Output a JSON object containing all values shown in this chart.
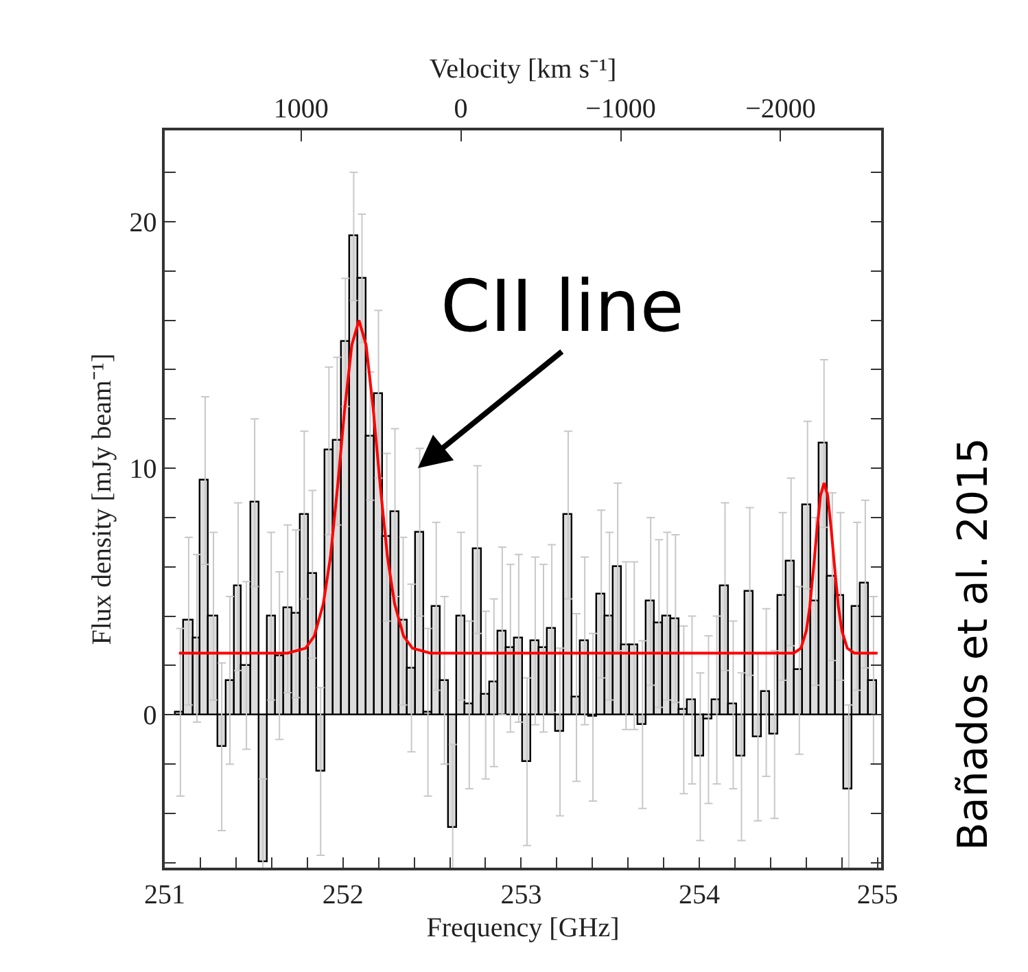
{
  "chart_data": {
    "type": "histogram",
    "xlabel": "Frequency [GHz]",
    "ylabel": "Flux density [mJy beam⁻¹]",
    "x2label": "Velocity [km s⁻¹]",
    "xlim": [
      251,
      255.02
    ],
    "ylim": [
      -6.2,
      23.7
    ],
    "x2lim": [
      1853,
      -2629
    ],
    "xticks": [
      251,
      {
        "value": 251.2,
        "label": null
      },
      {
        "value": 251.4,
        "label": null
      },
      {
        "value": 251.6,
        "label": null
      },
      {
        "value": 251.8,
        "label": null
      },
      252,
      {
        "value": 252.2,
        "label": null
      },
      {
        "value": 252.4,
        "label": null
      },
      {
        "value": 252.6,
        "label": null
      },
      {
        "value": 252.8,
        "label": null
      },
      253,
      {
        "value": 253.2,
        "label": null
      },
      {
        "value": 253.4,
        "label": null
      },
      {
        "value": 253.6,
        "label": null
      },
      {
        "value": 253.8,
        "label": null
      },
      254,
      {
        "value": 254.2,
        "label": null
      },
      {
        "value": 254.4,
        "label": null
      },
      {
        "value": 254.6,
        "label": null
      },
      {
        "value": 254.8,
        "label": null
      },
      255
    ],
    "yticks": [
      {
        "value": -6,
        "label": null
      },
      {
        "value": -4,
        "label": null
      },
      {
        "value": -2,
        "label": null
      },
      0,
      {
        "value": 2,
        "label": null
      },
      {
        "value": 4,
        "label": null
      },
      {
        "value": 6,
        "label": null
      },
      {
        "value": 8,
        "label": null
      },
      10,
      {
        "value": 12,
        "label": null
      },
      {
        "value": 14,
        "label": null
      },
      {
        "value": 16,
        "label": null
      },
      {
        "value": 18,
        "label": null
      },
      20,
      {
        "value": 22,
        "label": null
      }
    ],
    "x2ticks": [
      1000,
      0,
      {
        "value": -1000,
        "label": "−1000"
      },
      {
        "value": -2000,
        "label": "−2000"
      }
    ],
    "series": [
      {
        "color": "#dcdcdc",
        "bins": [
          251.065,
          251.111,
          251.158,
          251.204,
          251.25,
          251.297,
          251.343,
          251.389,
          251.435,
          251.482,
          251.528,
          251.574,
          251.621,
          251.667,
          251.713,
          251.76,
          251.806,
          251.852,
          251.898,
          251.945,
          251.991,
          252.037,
          252.084,
          252.13,
          252.176,
          252.223,
          252.269,
          252.315,
          252.361,
          252.408,
          252.454,
          252.5,
          252.547,
          252.593,
          252.639,
          252.686,
          252.732,
          252.778,
          252.824,
          252.871,
          252.917,
          252.963,
          253.01,
          253.056,
          253.102,
          253.149,
          253.195,
          253.241,
          253.287,
          253.334,
          253.38,
          253.426,
          253.473,
          253.519,
          253.565,
          253.612,
          253.658,
          253.704,
          253.75,
          253.797,
          253.843,
          253.889,
          253.936,
          253.982,
          254.028,
          254.075,
          254.121,
          254.167,
          254.213,
          254.26,
          254.306,
          254.352,
          254.399,
          254.445,
          254.491,
          254.538,
          254.584,
          254.63,
          254.676,
          254.723,
          254.769,
          254.815,
          254.862,
          254.908,
          254.954,
          255.0
        ],
        "values": [
          0.1,
          3.8,
          3.1,
          9.5,
          4.0,
          -1.3,
          1.4,
          5.2,
          2.0,
          8.6,
          -6.0,
          4.0,
          2.4,
          4.3,
          4.1,
          8.1,
          5.7,
          -2.3,
          10.7,
          11.1,
          15.1,
          19.4,
          17.7,
          11.3,
          13.0,
          7.2,
          8.2,
          3.8,
          1.9,
          7.4,
          0.1,
          4.4,
          1.4,
          -4.6,
          4.0,
          0.4,
          6.7,
          0.8,
          1.3,
          3.4,
          2.7,
          3.1,
          -1.9,
          3.0,
          2.7,
          3.5,
          -0.7,
          8.1,
          0.7,
          3.0,
          -0.1,
          4.9,
          4.0,
          6.0,
          2.8,
          2.8,
          -0.4,
          4.6,
          3.7,
          4.0,
          3.9,
          0.2,
          0.6,
          -1.7,
          -0.2,
          0.6,
          5.2,
          0.4,
          -1.7,
          5.0,
          -0.9,
          0.9,
          -0.8,
          4.8,
          6.2,
          1.8,
          8.5,
          4.6,
          11.0,
          5.6,
          4.8,
          -3.0,
          4.4,
          5.3,
          1.4
        ],
        "errors": [
          3.4,
          3.4,
          3.4,
          3.4,
          3.4,
          3.4,
          3.4,
          3.4,
          3.4,
          3.4,
          3.4,
          3.4,
          3.4,
          3.4,
          3.4,
          3.4,
          3.4,
          3.4,
          3.4,
          3.4,
          2.6,
          2.6,
          2.6,
          2.6,
          3.4,
          3.4,
          3.4,
          3.4,
          3.4,
          3.4,
          3.4,
          3.4,
          3.4,
          3.4,
          3.4,
          3.4,
          3.4,
          3.4,
          3.4,
          3.4,
          3.4,
          3.4,
          3.4,
          3.4,
          3.4,
          3.4,
          3.4,
          3.4,
          3.4,
          3.4,
          3.4,
          3.4,
          3.4,
          3.4,
          3.4,
          3.4,
          3.4,
          3.4,
          3.4,
          3.4,
          3.4,
          3.4,
          3.4,
          3.4,
          3.4,
          3.4,
          3.4,
          3.4,
          3.4,
          3.4,
          3.4,
          3.4,
          3.4,
          3.4,
          3.4,
          3.4,
          3.4,
          3.4,
          3.4,
          3.4,
          3.4,
          3.4,
          3.4,
          3.4,
          3.4
        ]
      },
      {
        "type": "line",
        "color": "#ff0000",
        "x": [
          251.08,
          251.69,
          251.79,
          251.84,
          251.89,
          251.93,
          251.97,
          252.01,
          252.05,
          252.09,
          252.13,
          252.17,
          252.21,
          252.25,
          252.29,
          252.34,
          252.39,
          252.49,
          254.53,
          254.57,
          254.6,
          254.62,
          254.64,
          254.66,
          254.68,
          254.7,
          254.72,
          254.74,
          254.76,
          254.78,
          254.8,
          254.83,
          254.87,
          255.0
        ],
        "values": [
          2.5,
          2.5,
          2.7,
          3.2,
          4.5,
          6.4,
          9.25,
          12.4,
          15.0,
          16.0,
          15.0,
          12.4,
          9.25,
          6.4,
          4.5,
          3.2,
          2.7,
          2.5,
          2.5,
          2.7,
          3.4,
          4.4,
          5.9,
          7.5,
          8.9,
          9.4,
          8.9,
          7.5,
          5.9,
          4.4,
          3.4,
          2.7,
          2.5,
          2.5
        ]
      }
    ],
    "annotations": [
      {
        "text": "CII line",
        "x": 252.42,
        "y": 10
      },
      "Bañados et al. 2015"
    ]
  }
}
